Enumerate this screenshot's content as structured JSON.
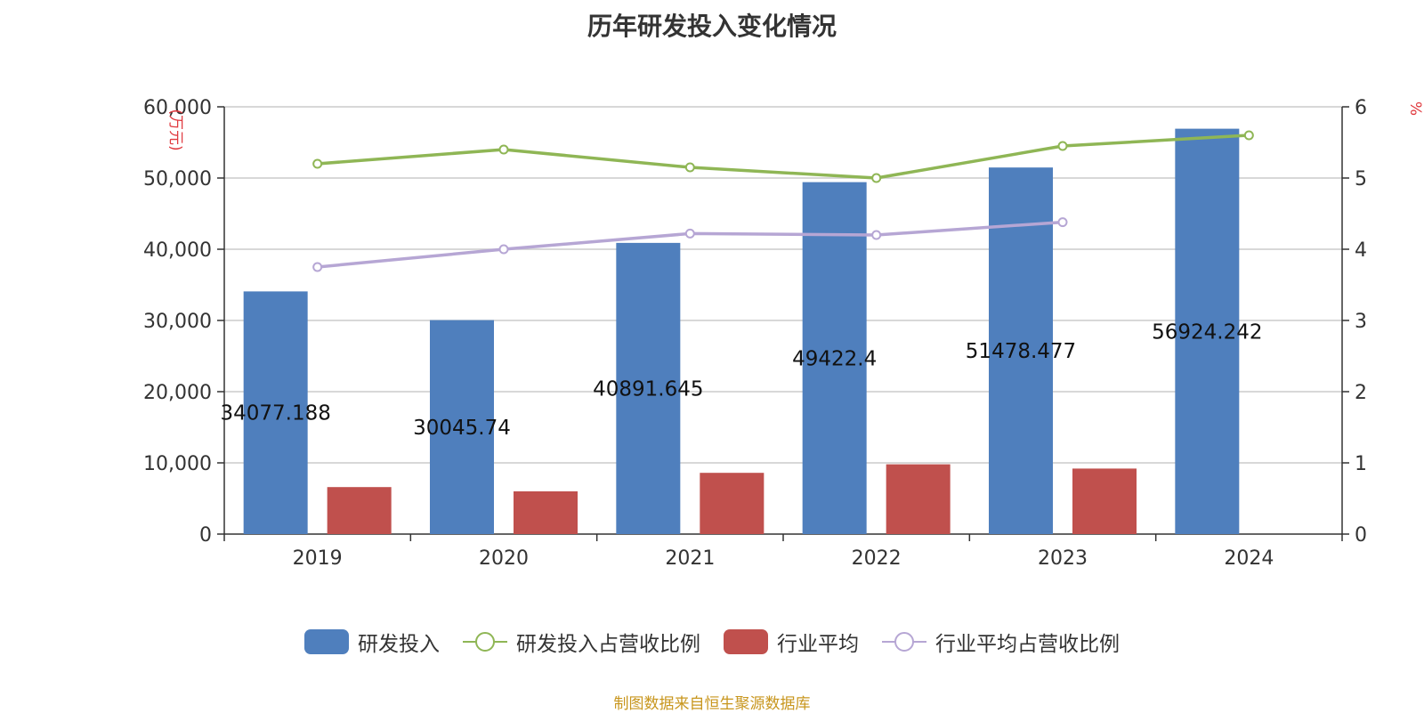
{
  "chart_data": {
    "type": "bar",
    "title": "历年研发投入变化情况",
    "categories": [
      "2019",
      "2020",
      "2021",
      "2022",
      "2023",
      "2024"
    ],
    "y_left": {
      "unit_label": "(万元)",
      "range": [
        0,
        60000
      ],
      "ticks": [
        "0",
        "10,000",
        "20,000",
        "30,000",
        "40,000",
        "50,000",
        "60,000"
      ]
    },
    "y_right": {
      "unit_label": "%",
      "range": [
        0,
        6
      ],
      "ticks": [
        "0",
        "1",
        "2",
        "3",
        "4",
        "5",
        "6"
      ]
    },
    "series": [
      {
        "name": "研发投入",
        "type": "bar",
        "axis": "left",
        "color": "#4f7fbd",
        "values": [
          34077.188,
          30045.74,
          40891.645,
          49422.4,
          51478.477,
          56924.242
        ],
        "labels": [
          "34077.188",
          "30045.74",
          "40891.645",
          "49422.4",
          "51478.477",
          "56924.242"
        ]
      },
      {
        "name": "研发投入占营收比例",
        "type": "line",
        "axis": "right",
        "color": "#8fb655",
        "values": [
          5.2,
          5.4,
          5.15,
          5.0,
          5.45,
          5.6
        ]
      },
      {
        "name": "行业平均",
        "type": "bar",
        "axis": "left",
        "color": "#c0504d",
        "values": [
          6600,
          6000,
          8600,
          9800,
          9200,
          null
        ]
      },
      {
        "name": "行业平均占营收比例",
        "type": "line",
        "axis": "right",
        "color": "#b6a6d4",
        "values": [
          3.75,
          4.0,
          4.22,
          4.2,
          4.38,
          null
        ]
      }
    ],
    "grid": true,
    "legend_position": "bottom"
  },
  "footer": {
    "source": "制图数据来自恒生聚源数据库"
  }
}
